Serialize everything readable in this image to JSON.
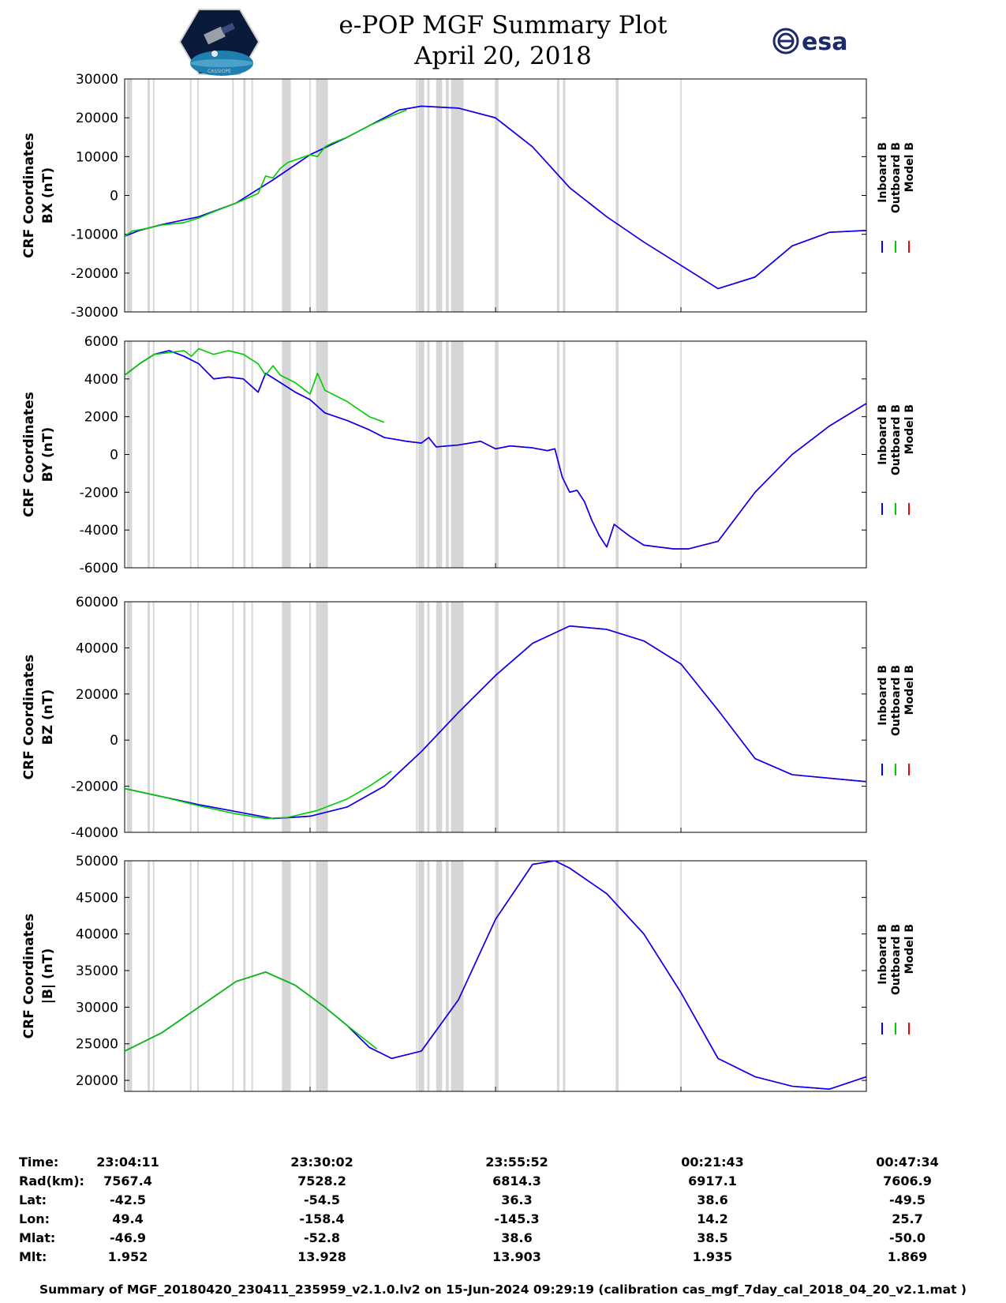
{
  "header": {
    "title": "e-POP MGF Summary Plot",
    "date": "April 20, 2018",
    "esa_logo": "esa",
    "epop_logo": "CASSIOPE"
  },
  "chart_data": [
    {
      "type": "line",
      "id": "bx",
      "ylabel_line1": "CRF Coordinates",
      "ylabel_line2": "BX (nT)",
      "ylim": [
        -30000,
        30000
      ],
      "yticks": [
        "30000",
        "20000",
        "10000",
        "0",
        "-10000",
        "-20000",
        "-30000"
      ],
      "ytick_values": [
        30000,
        20000,
        10000,
        0,
        -10000,
        -20000,
        -30000
      ],
      "legend": [
        "Inboard B",
        "Outboard B",
        "Model B"
      ],
      "series_colors": [
        "#0000ff",
        "#00cc00",
        "#ff0000"
      ],
      "inboard_t": [
        0,
        2,
        5,
        10,
        15,
        20,
        25,
        30,
        35,
        37,
        40,
        45,
        50,
        55,
        60,
        65,
        70,
        75,
        80,
        85,
        90,
        95,
        100
      ],
      "inboard_v": [
        -10500,
        -9000,
        -7500,
        -5500,
        -2000,
        4000,
        10500,
        15000,
        20000,
        22000,
        23000,
        22500,
        20000,
        12500,
        2000,
        -5500,
        -12000,
        -18000,
        -24000,
        -21000,
        -13000,
        -9500,
        -9000
      ],
      "outboard_t": [
        0,
        1,
        3,
        5,
        8,
        10,
        12,
        15,
        18,
        19,
        20,
        21,
        22,
        25,
        26,
        27,
        28,
        30,
        33,
        36,
        38
      ],
      "outboard_v": [
        -10500,
        -9200,
        -8500,
        -7600,
        -7000,
        -5800,
        -4200,
        -2000,
        500,
        5000,
        4500,
        7000,
        8500,
        10500,
        10000,
        12500,
        13500,
        15000,
        18000,
        20500,
        22000
      ]
    },
    {
      "type": "line",
      "id": "by",
      "ylabel_line1": "CRF Coordinates",
      "ylabel_line2": "BY (nT)",
      "ylim": [
        -6000,
        6000
      ],
      "yticks": [
        "6000",
        "4000",
        "2000",
        "0",
        "-2000",
        "-4000",
        "-6000"
      ],
      "ytick_values": [
        6000,
        4000,
        2000,
        0,
        -2000,
        -4000,
        -6000
      ],
      "legend": [
        "Inboard B",
        "Outboard B",
        "Model B"
      ],
      "series_colors": [
        "#0000ff",
        "#00cc00",
        "#ff0000"
      ],
      "inboard_t": [
        0,
        2,
        4,
        6,
        8,
        10,
        12,
        14,
        16,
        18,
        19,
        21,
        23,
        25,
        27,
        30,
        33,
        35,
        38,
        40,
        41,
        42,
        45,
        48,
        50,
        52,
        55,
        57,
        58,
        59,
        60,
        61,
        62,
        63,
        64,
        65,
        66,
        68,
        70,
        74,
        76,
        80,
        85,
        90,
        95,
        100
      ],
      "inboard_v": [
        4200,
        4800,
        5300,
        5500,
        5200,
        4800,
        4000,
        4100,
        4000,
        3300,
        4300,
        3800,
        3300,
        2900,
        2200,
        1800,
        1300,
        900,
        700,
        600,
        900,
        400,
        500,
        700,
        300,
        450,
        350,
        200,
        300,
        -1200,
        -2000,
        -1900,
        -2500,
        -3500,
        -4300,
        -4900,
        -3700,
        -4300,
        -4800,
        -5000,
        -5000,
        -4600,
        -2000,
        0,
        1500,
        2700
      ],
      "outboard_t": [
        0,
        2,
        4,
        6,
        8,
        9,
        10,
        12,
        14,
        16,
        18,
        19,
        20,
        21,
        23,
        25,
        26,
        27,
        30,
        33,
        35
      ],
      "outboard_v": [
        4200,
        4800,
        5300,
        5400,
        5500,
        5200,
        5600,
        5300,
        5500,
        5300,
        4800,
        4200,
        4700,
        4200,
        3800,
        3200,
        4300,
        3400,
        2800,
        2000,
        1700
      ]
    },
    {
      "type": "line",
      "id": "bz",
      "ylabel_line1": "CRF Coordinates",
      "ylabel_line2": "BZ (nT)",
      "ylim": [
        -40000,
        60000
      ],
      "yticks": [
        "60000",
        "40000",
        "20000",
        "0",
        "-20000",
        "-40000"
      ],
      "ytick_values": [
        60000,
        40000,
        20000,
        0,
        -20000,
        -40000
      ],
      "legend": [
        "Inboard B",
        "Outboard B",
        "Model B"
      ],
      "series_colors": [
        "#0000ff",
        "#00cc00",
        "#ff0000"
      ],
      "inboard_t": [
        0,
        10,
        20,
        25,
        30,
        35,
        40,
        45,
        50,
        55,
        60,
        65,
        70,
        75,
        80,
        85,
        90,
        95,
        100
      ],
      "inboard_v": [
        -21000,
        -28000,
        -34000,
        -33000,
        -29000,
        -20000,
        -5000,
        12000,
        28000,
        42000,
        49500,
        48000,
        43000,
        33000,
        13000,
        -8000,
        -15000,
        -16500,
        -18000
      ],
      "outboard_t": [
        0,
        5,
        10,
        15,
        19,
        22,
        26,
        30,
        33,
        36
      ],
      "outboard_v": [
        -21000,
        -24500,
        -28500,
        -32000,
        -34000,
        -33500,
        -30500,
        -25500,
        -20000,
        -13500
      ]
    },
    {
      "type": "line",
      "id": "bmag",
      "ylabel_line1": "CRF Coordinates",
      "ylabel_line2": "|B| (nT)",
      "ylim": [
        18500,
        50000
      ],
      "yticks": [
        "50000",
        "45000",
        "40000",
        "35000",
        "30000",
        "25000",
        "20000"
      ],
      "ytick_values": [
        50000,
        45000,
        40000,
        35000,
        30000,
        25000,
        20000
      ],
      "legend": [
        "Inboard B",
        "Outboard B",
        "Model B"
      ],
      "series_colors": [
        "#0000ff",
        "#00cc00",
        "#ff0000"
      ],
      "inboard_t": [
        0,
        5,
        10,
        15,
        19,
        23,
        27,
        30,
        33,
        36,
        40,
        45,
        50,
        55,
        58,
        60,
        65,
        70,
        75,
        80,
        85,
        90,
        95,
        100
      ],
      "inboard_v": [
        24000,
        26500,
        30000,
        33500,
        34800,
        33000,
        30000,
        27500,
        24500,
        23000,
        24000,
        31000,
        42000,
        49500,
        50000,
        49000,
        45500,
        40000,
        32000,
        23000,
        20500,
        19200,
        18800,
        20500
      ],
      "outboard_t": [
        0,
        5,
        10,
        15,
        19,
        23,
        27,
        30,
        34
      ],
      "outboard_v": [
        24000,
        26500,
        30000,
        33500,
        34800,
        33000,
        30000,
        27500,
        24300
      ]
    }
  ],
  "info": {
    "labels": [
      "Time:",
      "Rad(km):",
      "Lat:",
      "Lon:",
      "Mlat:",
      "Mlt:"
    ],
    "columns": [
      [
        "23:04:11",
        "7567.4",
        "-42.5",
        "49.4",
        "-46.9",
        "1.952"
      ],
      [
        "23:30:02",
        "7528.2",
        "-54.5",
        "-158.4",
        "-52.8",
        "13.928"
      ],
      [
        "23:55:52",
        "6814.3",
        "36.3",
        "-145.3",
        "38.6",
        "13.903"
      ],
      [
        "00:21:43",
        "6917.1",
        "38.6",
        "14.2",
        "38.5",
        "1.935"
      ],
      [
        "00:47:34",
        "7606.9",
        "-49.5",
        "25.7",
        "-50.0",
        "1.869"
      ]
    ]
  },
  "footer": "Summary of MGF_20180420_230411_235959_v2.1.0.lv2 on 15-Jun-2024 09:29:19 (calibration cas_mgf_7day_cal_2018_04_20_v2.1.mat )"
}
